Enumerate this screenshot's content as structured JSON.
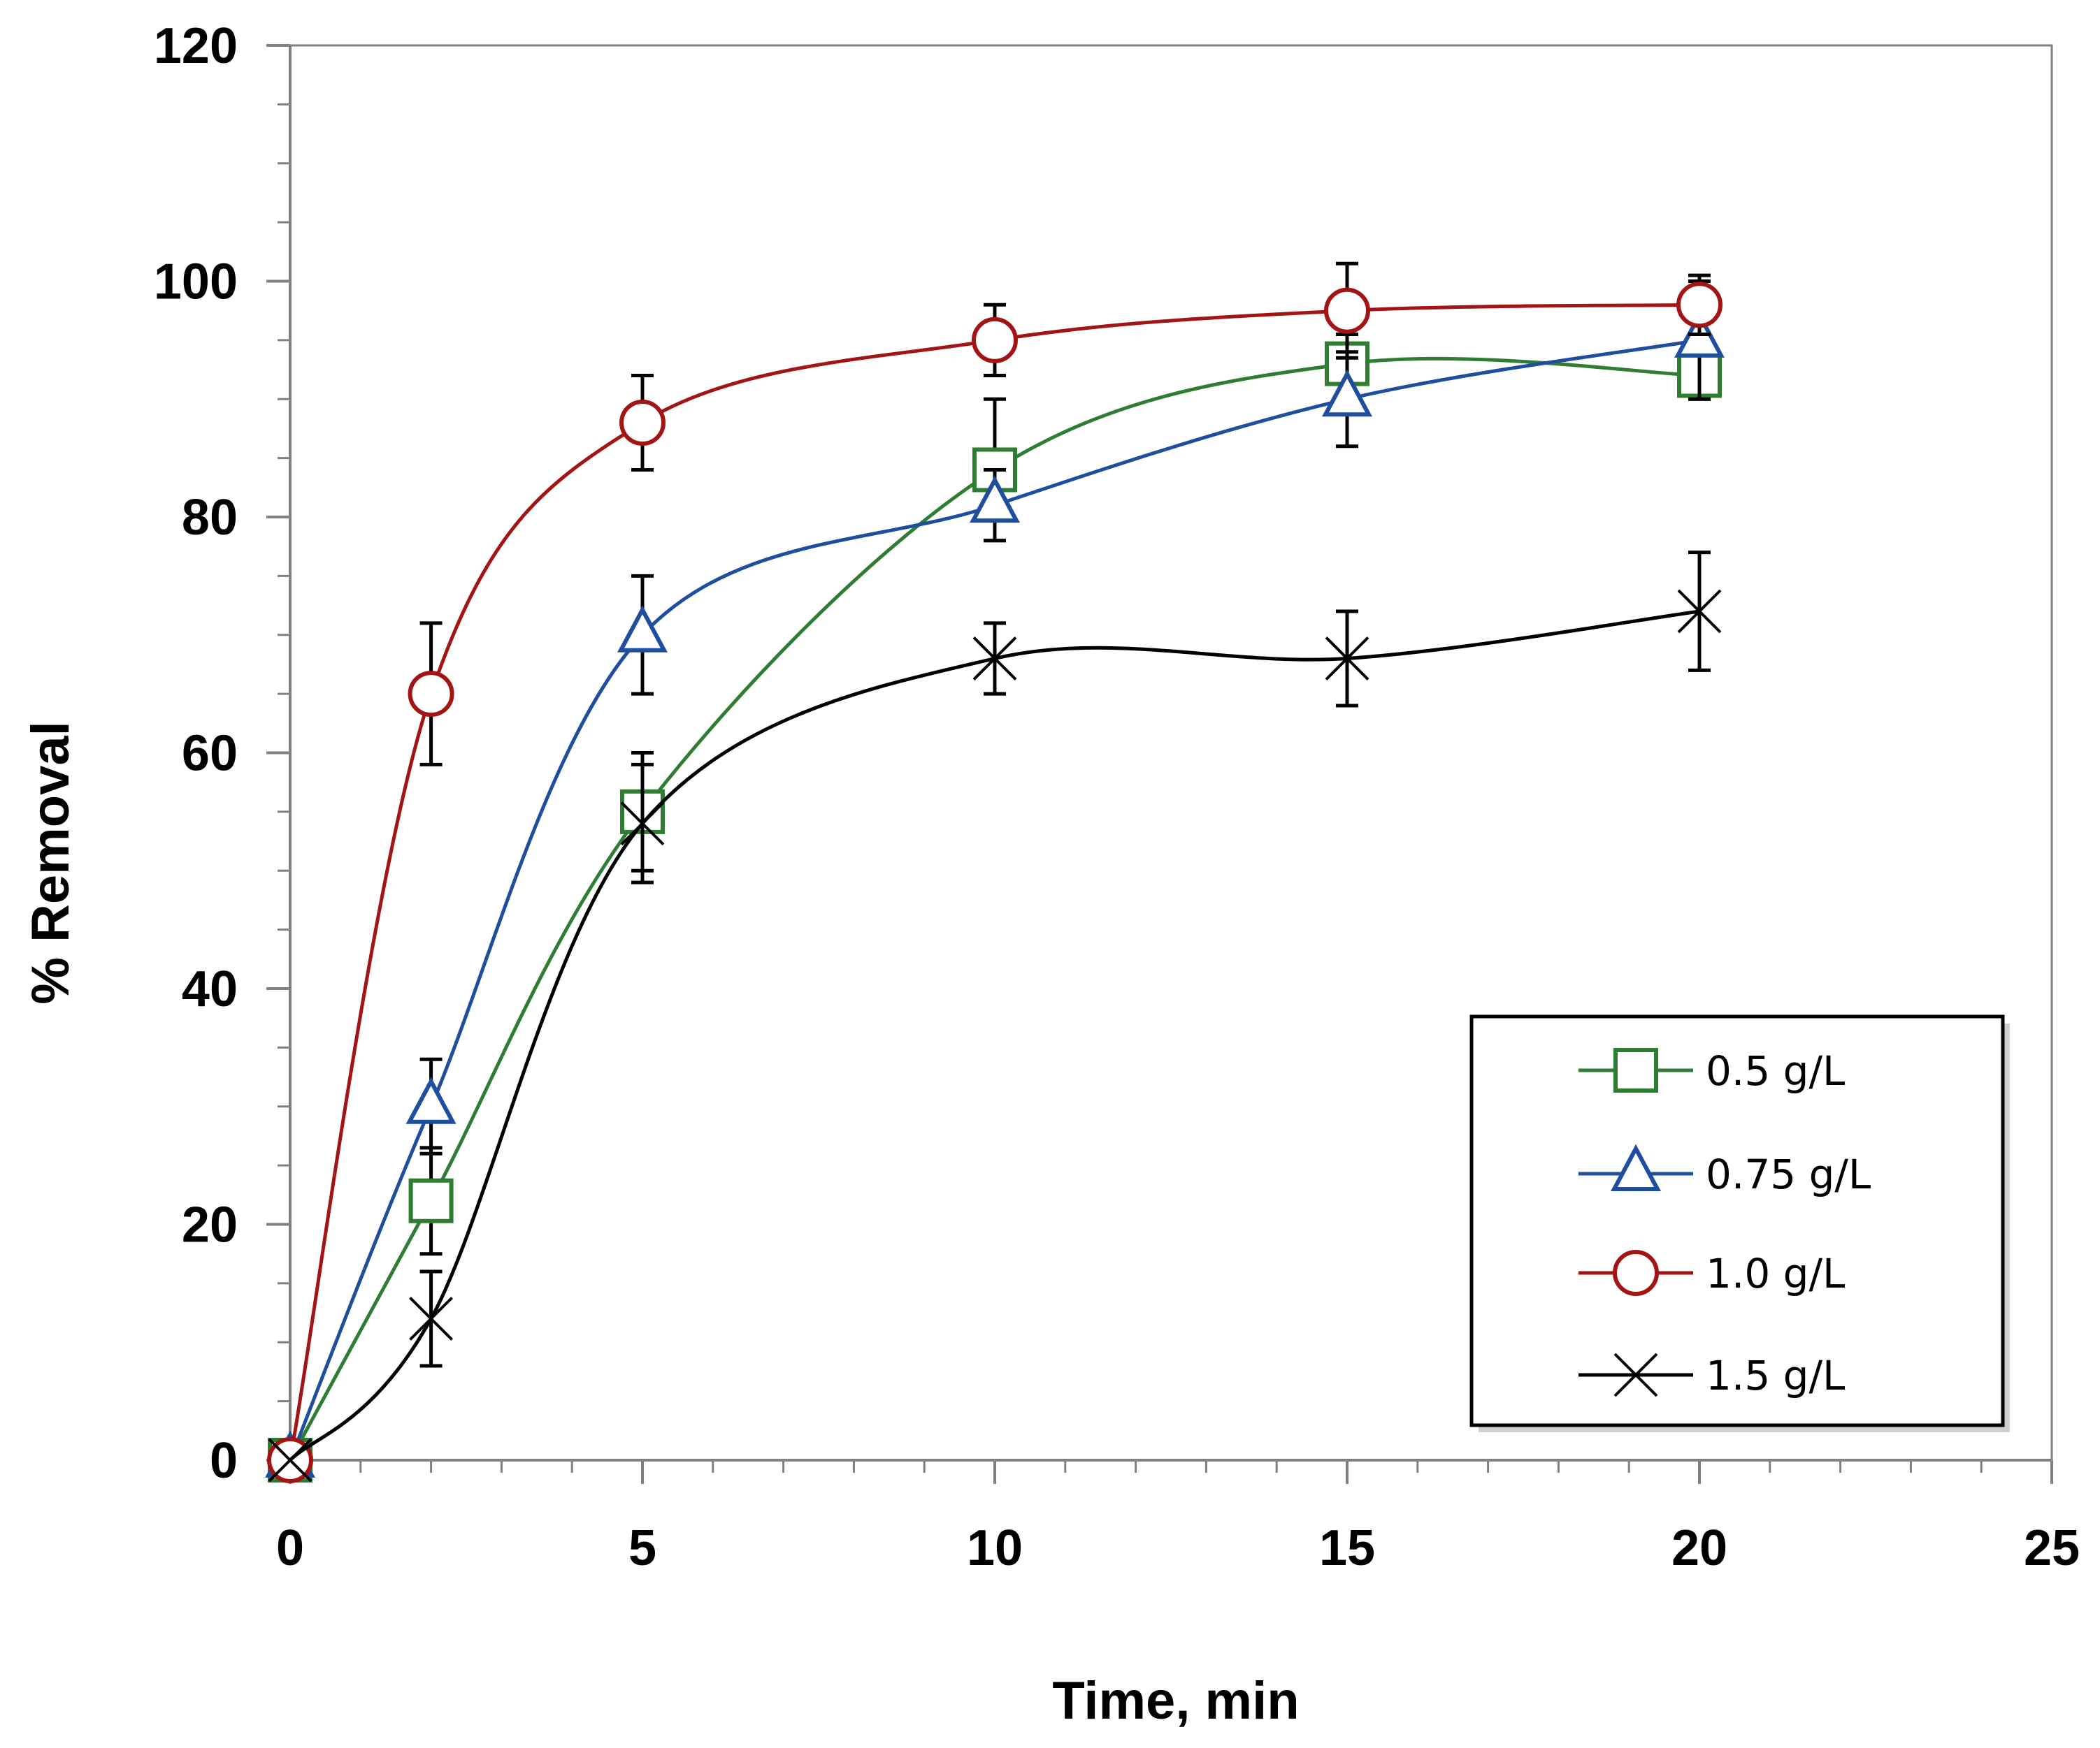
{
  "chart_data": {
    "type": "line",
    "title": "",
    "xlabel": "Time, min",
    "ylabel": "% Removal",
    "xlim": [
      0,
      25
    ],
    "ylim": [
      0,
      120
    ],
    "x_ticks": [
      0,
      5,
      10,
      15,
      20,
      25
    ],
    "y_ticks": [
      0,
      20,
      40,
      60,
      80,
      100,
      120
    ],
    "x_minor_step": 1,
    "y_minor_step": 5,
    "grid": false,
    "legend_position": "bottom-right",
    "x": [
      0,
      2,
      5,
      10,
      15,
      20
    ],
    "series": [
      {
        "name": "0.5 g/L",
        "color": "#2e7d32",
        "marker": "square",
        "values": [
          0,
          22,
          55,
          84,
          93,
          92
        ],
        "errors": [
          0,
          4.5,
          5,
          6,
          2.5,
          2
        ]
      },
      {
        "name": "0.75 g/L",
        "color": "#1f4e9e",
        "marker": "triangle",
        "values": [
          0,
          30,
          70,
          81,
          90,
          95
        ],
        "errors": [
          0,
          4,
          5,
          3,
          4,
          5
        ]
      },
      {
        "name": "1.0 g/L",
        "color": "#a31515",
        "marker": "circle",
        "values": [
          0,
          65,
          88,
          95,
          97.5,
          98
        ],
        "errors": [
          0,
          6,
          4,
          3,
          4,
          2.5
        ]
      },
      {
        "name": "1.5 g/L",
        "color": "#000000",
        "marker": "x",
        "values": [
          0,
          12,
          54,
          68,
          68,
          72
        ],
        "errors": [
          0,
          4,
          5,
          3,
          4,
          5
        ]
      }
    ]
  }
}
